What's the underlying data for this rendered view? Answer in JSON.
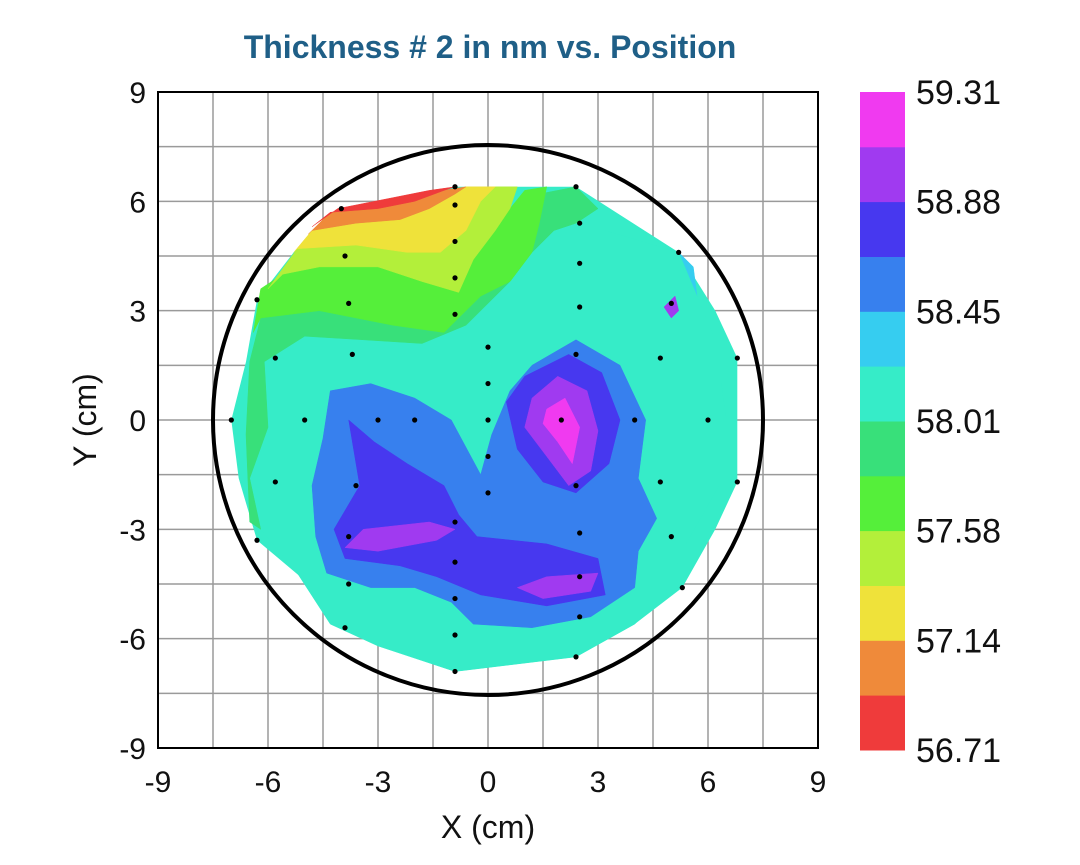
{
  "chart_data": {
    "type": "contour",
    "title": "Thickness # 2 in nm vs. Position",
    "xlabel": "X (cm)",
    "ylabel": "Y (cm)",
    "xlim": [
      -9,
      9
    ],
    "ylim": [
      -9,
      9
    ],
    "x_ticks": [
      "-9",
      "-6",
      "-3",
      "0",
      "3",
      "6",
      "9"
    ],
    "y_ticks": [
      "-9",
      "-6",
      "-3",
      "0",
      "3",
      "6",
      "9"
    ],
    "grid": true,
    "wafer_radius": 7.5,
    "colorbar": {
      "placement": "right",
      "labels": [
        "59.31",
        "58.88",
        "58.45",
        "58.01",
        "57.58",
        "57.14",
        "56.71"
      ],
      "min": 56.71,
      "max": 59.31,
      "band_colors": [
        "#ef3b3b",
        "#ef8a3a",
        "#efe23a",
        "#b3ef3a",
        "#55ef3a",
        "#38e07a",
        "#36ecc8",
        "#36cdf0",
        "#3780ee",
        "#4738ef",
        "#a03af0",
        "#f03af0"
      ]
    },
    "measurement_points": [
      [
        -7.0,
        0
      ],
      [
        -6.3,
        3.3
      ],
      [
        -6.3,
        -3.3
      ],
      [
        -5.8,
        1.7
      ],
      [
        -5.8,
        -1.7
      ],
      [
        -5.0,
        0
      ],
      [
        -4.0,
        5.8
      ],
      [
        -3.9,
        4.5
      ],
      [
        -3.8,
        3.2
      ],
      [
        -3.8,
        -4.5
      ],
      [
        -3.9,
        -5.7
      ],
      [
        -3.8,
        -3.2
      ],
      [
        -3.7,
        1.8
      ],
      [
        -3.6,
        -1.8
      ],
      [
        -3.0,
        0
      ],
      [
        -2.0,
        0
      ],
      [
        -0.9,
        6.4
      ],
      [
        -0.9,
        5.9
      ],
      [
        -0.9,
        4.9
      ],
      [
        -0.9,
        3.9
      ],
      [
        -0.9,
        2.9
      ],
      [
        -0.9,
        -2.8
      ],
      [
        -0.9,
        -3.9
      ],
      [
        -0.9,
        -4.9
      ],
      [
        -0.9,
        -5.9
      ],
      [
        -0.9,
        -6.9
      ],
      [
        0,
        2.0
      ],
      [
        0,
        1.0
      ],
      [
        0,
        0
      ],
      [
        0,
        -1.0
      ],
      [
        0,
        -2.0
      ],
      [
        2.0,
        0
      ],
      [
        2.4,
        6.4
      ],
      [
        2.5,
        5.4
      ],
      [
        2.5,
        4.3
      ],
      [
        2.5,
        3.1
      ],
      [
        2.4,
        1.8
      ],
      [
        2.4,
        -1.8
      ],
      [
        2.5,
        -3.1
      ],
      [
        2.5,
        -4.3
      ],
      [
        2.5,
        -5.4
      ],
      [
        2.4,
        -6.5
      ],
      [
        4.0,
        0
      ],
      [
        4.7,
        1.7
      ],
      [
        4.7,
        -1.7
      ],
      [
        5.0,
        3.2
      ],
      [
        5.0,
        -3.2
      ],
      [
        5.2,
        4.6
      ],
      [
        5.3,
        -4.6
      ],
      [
        6.0,
        0
      ],
      [
        6.8,
        1.7
      ],
      [
        6.8,
        -1.7
      ]
    ],
    "contour_regions": [
      {
        "level": 11,
        "polygon": [
          [
            1.6,
            0.3
          ],
          [
            2.1,
            0.6
          ],
          [
            2.5,
            -0.2
          ],
          [
            2.3,
            -1.2
          ],
          [
            1.9,
            -0.6
          ],
          [
            1.5,
            -0.1
          ]
        ]
      },
      {
        "level": 10,
        "polygon": [
          [
            1.2,
            0.6
          ],
          [
            1.9,
            1.2
          ],
          [
            2.7,
            0.8
          ],
          [
            3.0,
            -0.3
          ],
          [
            2.8,
            -1.4
          ],
          [
            2.2,
            -1.8
          ],
          [
            1.6,
            -1.0
          ],
          [
            1.0,
            -0.2
          ]
        ]
      },
      {
        "level": 10,
        "polygon": [
          [
            -3.9,
            -3.5
          ],
          [
            -3.4,
            -3.0
          ],
          [
            -1.6,
            -2.8
          ],
          [
            -0.9,
            -3.0
          ],
          [
            -1.4,
            -3.3
          ],
          [
            -3.0,
            -3.6
          ]
        ]
      },
      {
        "level": 10,
        "polygon": [
          [
            0.8,
            -4.6
          ],
          [
            1.6,
            -4.3
          ],
          [
            3.0,
            -4.2
          ],
          [
            2.8,
            -4.7
          ],
          [
            1.5,
            -4.9
          ]
        ]
      },
      {
        "level": 10,
        "polygon": [
          [
            4.8,
            3.1
          ],
          [
            5.1,
            3.4
          ],
          [
            5.2,
            3.0
          ],
          [
            5.0,
            2.8
          ]
        ]
      },
      {
        "level": 9,
        "polygon": [
          [
            0.5,
            0.5
          ],
          [
            1.0,
            1.2
          ],
          [
            2.2,
            1.8
          ],
          [
            3.1,
            1.3
          ],
          [
            3.6,
            0
          ],
          [
            3.3,
            -1.2
          ],
          [
            2.4,
            -2.0
          ],
          [
            1.5,
            -1.7
          ],
          [
            0.8,
            -0.8
          ]
        ]
      },
      {
        "level": 9,
        "polygon": [
          [
            -3.8,
            0
          ],
          [
            -3.5,
            -1.8
          ],
          [
            -4.2,
            -3.0
          ],
          [
            -3.9,
            -3.8
          ],
          [
            -2.4,
            -4.0
          ],
          [
            -1.4,
            -4.3
          ],
          [
            -0.2,
            -4.8
          ],
          [
            1.6,
            -5.1
          ],
          [
            3.2,
            -4.8
          ],
          [
            3.0,
            -3.8
          ],
          [
            1.6,
            -3.4
          ],
          [
            -0.3,
            -3.2
          ],
          [
            -0.8,
            -2.6
          ],
          [
            -1.2,
            -1.8
          ],
          [
            -2.2,
            -1.2
          ],
          [
            -3.1,
            -0.6
          ]
        ]
      },
      {
        "level": 8,
        "polygon": [
          [
            -4.5,
            -0.5
          ],
          [
            -4.3,
            0.8
          ],
          [
            -3.2,
            1.0
          ],
          [
            -2.0,
            0.6
          ],
          [
            -1.0,
            0
          ],
          [
            -0.2,
            -1.5
          ],
          [
            0.1,
            -0.4
          ],
          [
            0.6,
            0.8
          ],
          [
            1.2,
            1.5
          ],
          [
            2.4,
            2.2
          ],
          [
            3.6,
            1.5
          ],
          [
            4.3,
            0
          ],
          [
            4.1,
            -1.6
          ],
          [
            4.6,
            -2.7
          ],
          [
            4.1,
            -3.6
          ],
          [
            4.0,
            -4.6
          ],
          [
            2.8,
            -5.4
          ],
          [
            1.2,
            -5.7
          ],
          [
            -0.4,
            -5.6
          ],
          [
            -1.0,
            -5.0
          ],
          [
            -2.0,
            -4.6
          ],
          [
            -3.2,
            -4.6
          ],
          [
            -4.4,
            -4.2
          ],
          [
            -4.7,
            -3.2
          ],
          [
            -4.8,
            -1.8
          ]
        ]
      },
      {
        "level": 7,
        "polygon": [
          [
            -5.6,
            -0.2
          ],
          [
            -5.5,
            1.4
          ],
          [
            -4.0,
            1.6
          ],
          [
            -2.4,
            1.5
          ],
          [
            -0.8,
            1.6
          ],
          [
            0.2,
            1.8
          ],
          [
            1.2,
            2.5
          ],
          [
            2.4,
            3.4
          ],
          [
            3.4,
            3.6
          ],
          [
            4.2,
            4.4
          ],
          [
            5.2,
            4.6
          ],
          [
            5.6,
            4.2
          ],
          [
            5.8,
            2.6
          ],
          [
            6.0,
            1.2
          ],
          [
            5.6,
            0
          ],
          [
            5.6,
            -1.6
          ],
          [
            5.2,
            -3.2
          ],
          [
            4.6,
            -4.2
          ],
          [
            3.8,
            -5.4
          ],
          [
            2.6,
            -6.2
          ],
          [
            1.0,
            -6.4
          ],
          [
            -0.4,
            -6.4
          ],
          [
            -1.0,
            -6.5
          ],
          [
            -2.4,
            -6.3
          ],
          [
            -3.4,
            -5.6
          ],
          [
            -4.4,
            -5.0
          ],
          [
            -5.2,
            -3.8
          ],
          [
            -5.8,
            -2.4
          ]
        ]
      },
      {
        "level": 6,
        "polygon": [
          [
            -6.0,
            -0.2
          ],
          [
            -6.1,
            1.6
          ],
          [
            -5.0,
            2.3
          ],
          [
            -3.4,
            2.2
          ],
          [
            -1.8,
            2.1
          ],
          [
            -0.6,
            2.6
          ],
          [
            0.6,
            3.8
          ],
          [
            1.2,
            4.6
          ],
          [
            1.4,
            5.4
          ],
          [
            2.0,
            6.2
          ],
          [
            2.4,
            6.4
          ],
          [
            3.0,
            5.8
          ],
          [
            3.2,
            5.2
          ],
          [
            5.2,
            4.6
          ],
          [
            5.7,
            3.4
          ],
          [
            6.2,
            2.2
          ],
          [
            6.5,
            0
          ],
          [
            6.3,
            -1.8
          ],
          [
            5.4,
            -3.4
          ],
          [
            4.8,
            -4.8
          ],
          [
            4.0,
            -5.6
          ],
          [
            2.4,
            -6.5
          ],
          [
            -0.9,
            -6.9
          ],
          [
            -3.0,
            -6.2
          ],
          [
            -4.3,
            -5.6
          ],
          [
            -5.2,
            -4.2
          ],
          [
            -6.2,
            -3.0
          ],
          [
            -6.5,
            -1.6
          ]
        ]
      },
      {
        "level": 5,
        "polygon": [
          [
            -6.6,
            -0.4
          ],
          [
            -6.5,
            1.6
          ],
          [
            -6.2,
            2.8
          ],
          [
            -4.6,
            3.0
          ],
          [
            -2.6,
            2.6
          ],
          [
            -1.2,
            2.4
          ],
          [
            -0.2,
            3.4
          ],
          [
            0.6,
            4.8
          ],
          [
            0.9,
            5.6
          ],
          [
            1.4,
            6.2
          ],
          [
            2.4,
            6.4
          ],
          [
            3.0,
            5.8
          ],
          [
            2.4,
            5.4
          ],
          [
            1.8,
            5.2
          ],
          [
            1.2,
            4.6
          ],
          [
            0.6,
            3.8
          ],
          [
            -0.6,
            2.6
          ],
          [
            -1.8,
            2.1
          ],
          [
            -3.4,
            2.2
          ],
          [
            -5.0,
            2.3
          ],
          [
            -6.1,
            1.6
          ],
          [
            -6.0,
            -0.2
          ],
          [
            -6.5,
            -1.6
          ],
          [
            -6.2,
            -3.0
          ],
          [
            -6.5,
            -2.8
          ]
        ]
      },
      {
        "level": 4,
        "polygon": [
          [
            -6.4,
            2.4
          ],
          [
            -6.2,
            3.6
          ],
          [
            -5.6,
            4.0
          ],
          [
            -4.6,
            4.2
          ],
          [
            -3.0,
            4.2
          ],
          [
            -1.8,
            3.8
          ],
          [
            -0.8,
            3.5
          ],
          [
            -0.4,
            4.4
          ],
          [
            0.2,
            5.2
          ],
          [
            0.6,
            5.8
          ],
          [
            1.0,
            6.3
          ],
          [
            1.6,
            6.4
          ],
          [
            1.4,
            5.4
          ],
          [
            1.2,
            4.6
          ],
          [
            0.6,
            3.8
          ],
          [
            -0.2,
            3.4
          ],
          [
            -1.2,
            2.4
          ],
          [
            -2.6,
            2.6
          ],
          [
            -4.6,
            3.0
          ],
          [
            -6.2,
            2.8
          ]
        ]
      },
      {
        "level": 3,
        "polygon": [
          [
            -6.0,
            3.6
          ],
          [
            -5.2,
            4.7
          ],
          [
            -3.6,
            4.8
          ],
          [
            -2.2,
            4.6
          ],
          [
            -1.3,
            4.6
          ],
          [
            -0.6,
            5.2
          ],
          [
            -0.2,
            6.0
          ],
          [
            0.2,
            6.4
          ],
          [
            0.8,
            6.4
          ],
          [
            0.6,
            5.8
          ],
          [
            0.2,
            5.2
          ],
          [
            -0.4,
            4.4
          ],
          [
            -0.8,
            3.5
          ],
          [
            -1.8,
            3.8
          ],
          [
            -3.0,
            4.2
          ],
          [
            -4.6,
            4.2
          ],
          [
            -5.6,
            4.0
          ]
        ]
      },
      {
        "level": 2,
        "polygon": [
          [
            -5.3,
            4.6
          ],
          [
            -4.8,
            5.2
          ],
          [
            -3.6,
            5.4
          ],
          [
            -2.4,
            5.5
          ],
          [
            -1.6,
            5.8
          ],
          [
            -0.9,
            6.2
          ],
          [
            -0.6,
            6.4
          ],
          [
            0.2,
            6.4
          ],
          [
            -0.2,
            6.0
          ],
          [
            -0.6,
            5.2
          ],
          [
            -1.3,
            4.6
          ],
          [
            -2.2,
            4.6
          ],
          [
            -3.6,
            4.8
          ],
          [
            -5.2,
            4.7
          ]
        ]
      },
      {
        "level": 1,
        "polygon": [
          [
            -4.9,
            5.1
          ],
          [
            -4.3,
            5.7
          ],
          [
            -3.0,
            5.8
          ],
          [
            -2.0,
            6.0
          ],
          [
            -1.2,
            6.3
          ],
          [
            -0.6,
            6.4
          ],
          [
            -0.9,
            6.2
          ],
          [
            -1.6,
            5.8
          ],
          [
            -2.4,
            5.5
          ],
          [
            -3.6,
            5.4
          ],
          [
            -4.8,
            5.2
          ]
        ]
      },
      {
        "level": 0,
        "polygon": [
          [
            -4.8,
            5.3
          ],
          [
            -4.1,
            5.8
          ],
          [
            -2.6,
            6.1
          ],
          [
            -1.6,
            6.3
          ],
          [
            -0.9,
            6.4
          ],
          [
            -1.2,
            6.3
          ],
          [
            -2.0,
            6.0
          ],
          [
            -3.0,
            5.8
          ],
          [
            -4.3,
            5.7
          ]
        ]
      }
    ],
    "data_domain": [
      [
        -7.0,
        0
      ],
      [
        -6.6,
        1.6
      ],
      [
        -6.3,
        3.3
      ],
      [
        -5.3,
        4.6
      ],
      [
        -4.0,
        5.8
      ],
      [
        -0.9,
        6.4
      ],
      [
        2.4,
        6.4
      ],
      [
        5.2,
        4.6
      ],
      [
        6.2,
        3.0
      ],
      [
        6.8,
        1.7
      ],
      [
        6.8,
        -1.7
      ],
      [
        6.2,
        -3.0
      ],
      [
        5.3,
        -4.6
      ],
      [
        4.0,
        -5.6
      ],
      [
        2.4,
        -6.5
      ],
      [
        -0.9,
        -6.9
      ],
      [
        -3.9,
        -5.7
      ],
      [
        -5.0,
        -4.4
      ],
      [
        -6.3,
        -3.3
      ],
      [
        -6.8,
        -1.6
      ]
    ]
  }
}
